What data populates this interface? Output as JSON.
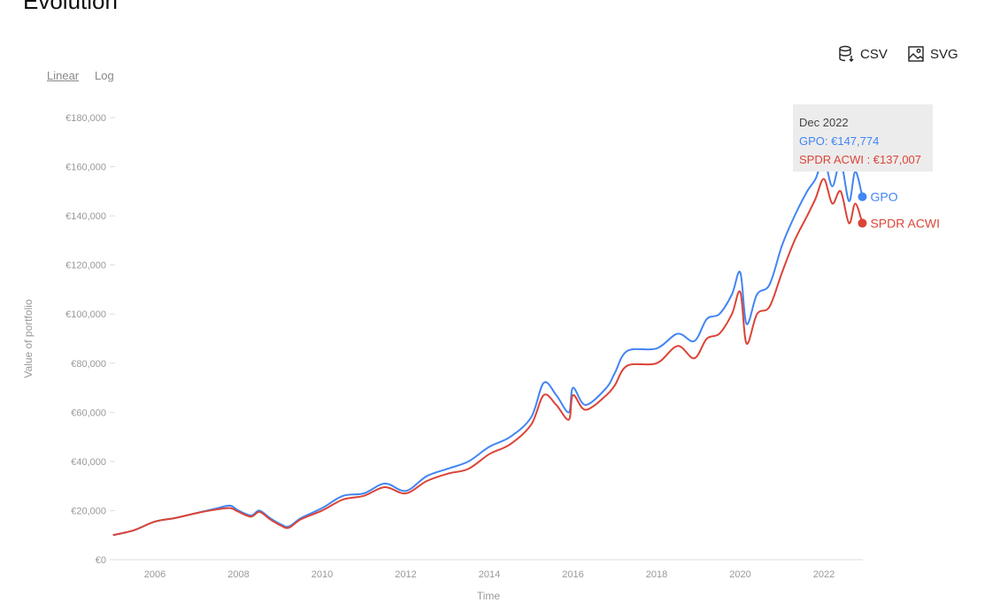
{
  "title": "Evolution",
  "scale_toggle": {
    "linear": "Linear",
    "log": "Log",
    "active": "Linear"
  },
  "downloads": {
    "csv": "CSV",
    "svg": "SVG"
  },
  "tooltip": {
    "date": "Dec 2022",
    "gpo": "GPO: €147,774",
    "spdr": "SPDR ACWI : €137,007"
  },
  "chart_data": {
    "type": "line",
    "xlabel": "Time",
    "ylabel": "Value of portfolio",
    "ylim": [
      0,
      180000
    ],
    "xlim": [
      2005,
      2023
    ],
    "y_ticks": [
      "€0",
      "€20,000",
      "€40,000",
      "€60,000",
      "€80,000",
      "€100,000",
      "€120,000",
      "€140,000",
      "€160,000",
      "€180,000"
    ],
    "x_ticks": [
      "2006",
      "2008",
      "2010",
      "2012",
      "2014",
      "2016",
      "2018",
      "2020",
      "2022"
    ],
    "x": [
      2005.0,
      2005.5,
      2006.0,
      2006.5,
      2007.0,
      2007.5,
      2007.8,
      2008.0,
      2008.3,
      2008.5,
      2008.75,
      2009.0,
      2009.2,
      2009.5,
      2010.0,
      2010.5,
      2011.0,
      2011.5,
      2012.0,
      2012.5,
      2013.0,
      2013.5,
      2014.0,
      2014.5,
      2015.0,
      2015.3,
      2015.6,
      2015.9,
      2016.0,
      2016.3,
      2016.8,
      2017.0,
      2017.3,
      2018.0,
      2018.5,
      2018.9,
      2019.2,
      2019.5,
      2019.8,
      2020.0,
      2020.15,
      2020.4,
      2020.7,
      2021.0,
      2021.3,
      2021.6,
      2021.8,
      2022.0,
      2022.2,
      2022.4,
      2022.6,
      2022.75,
      2022.92
    ],
    "series": [
      {
        "name": "GPO",
        "color": "#4285f4",
        "values": [
          10000,
          12000,
          15500,
          17000,
          19000,
          21000,
          22000,
          20000,
          18000,
          20000,
          17000,
          14500,
          13500,
          17000,
          21000,
          26000,
          27000,
          31000,
          28000,
          34000,
          37000,
          40000,
          46000,
          50000,
          58000,
          72000,
          67000,
          60000,
          70000,
          63000,
          70000,
          76000,
          85000,
          86000,
          92000,
          89000,
          98000,
          100000,
          108000,
          117000,
          96000,
          108000,
          112000,
          128000,
          140000,
          150000,
          155000,
          163000,
          152000,
          162000,
          146000,
          158000,
          147774
        ]
      },
      {
        "name": "SPDR ACWI",
        "color": "#db4437",
        "values": [
          10000,
          12000,
          15500,
          17000,
          19000,
          20500,
          21000,
          19500,
          17500,
          19500,
          16500,
          14000,
          13000,
          16500,
          20000,
          24500,
          26000,
          29500,
          27000,
          32000,
          35000,
          37000,
          43000,
          47000,
          55000,
          67000,
          63000,
          57000,
          67000,
          61000,
          67000,
          71000,
          79000,
          80000,
          87000,
          82000,
          90000,
          92000,
          100000,
          109000,
          88000,
          100000,
          103000,
          117000,
          130000,
          140000,
          147000,
          155000,
          145000,
          150000,
          137000,
          145000,
          137007
        ]
      }
    ]
  }
}
